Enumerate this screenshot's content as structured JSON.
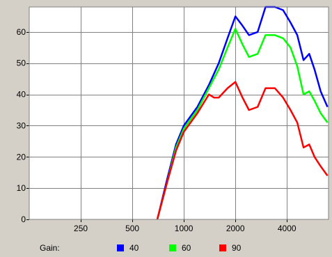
{
  "chart_data": {
    "type": "line",
    "title": "",
    "xlabel": "",
    "ylabel": "",
    "x_scale": "log",
    "x_ticks": [
      250,
      500,
      1000,
      2000,
      4000
    ],
    "x_tick_labels": [
      "250",
      "500",
      "1000",
      "2000",
      "4000"
    ],
    "xlim": [
      125,
      7000
    ],
    "y_ticks": [
      0,
      10,
      20,
      30,
      40,
      50,
      60
    ],
    "y_tick_labels": [
      "0",
      "10",
      "20",
      "30",
      "40",
      "50",
      "60"
    ],
    "ylim": [
      0,
      68
    ],
    "grid": true,
    "background": "#ffffff",
    "grid_color": "#808080",
    "legend_title": "Gain:",
    "legend_position": "bottom",
    "series": [
      {
        "name": "40",
        "color": "#0000ff",
        "x": [
          700,
          800,
          900,
          1000,
          1200,
          1400,
          1600,
          1800,
          2000,
          2200,
          2400,
          2700,
          3000,
          3400,
          3800,
          4200,
          4600,
          5000,
          5400,
          5800,
          6300,
          6900
        ],
        "y": [
          0,
          13,
          24,
          30,
          36,
          43,
          50,
          58,
          65,
          62,
          59,
          60,
          68,
          68,
          67,
          63,
          59,
          51,
          53,
          48,
          41,
          36
        ]
      },
      {
        "name": "60",
        "color": "#00ff00",
        "x": [
          700,
          800,
          900,
          1000,
          1200,
          1400,
          1600,
          1800,
          2000,
          2200,
          2400,
          2700,
          3000,
          3400,
          3800,
          4200,
          4600,
          5000,
          5400,
          5800,
          6300,
          6900
        ],
        "y": [
          0,
          12,
          23,
          29,
          35,
          42,
          48,
          55,
          61,
          56,
          52,
          53,
          59,
          59,
          58,
          55,
          49,
          40,
          41,
          38,
          34,
          31
        ]
      },
      {
        "name": "90",
        "color": "#ff0000",
        "x": [
          700,
          800,
          900,
          1000,
          1200,
          1400,
          1500,
          1600,
          1800,
          2000,
          2200,
          2400,
          2700,
          3000,
          3400,
          3800,
          4200,
          4600,
          5000,
          5400,
          5800,
          6300,
          6900
        ],
        "y": [
          0,
          12,
          22,
          28,
          34,
          40,
          39,
          39,
          42,
          44,
          39,
          35,
          36,
          42,
          42,
          39,
          35,
          31,
          23,
          24,
          20,
          17,
          14
        ]
      }
    ]
  }
}
